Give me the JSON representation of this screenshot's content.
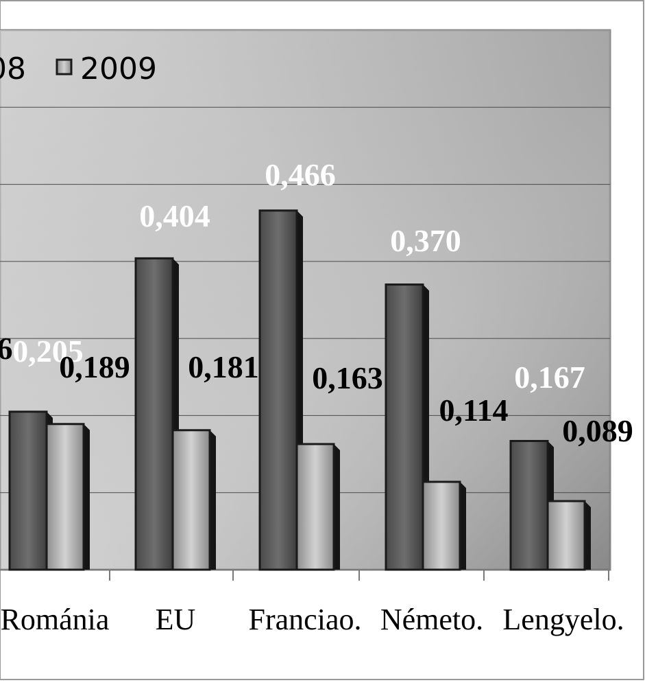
{
  "chart_data": {
    "type": "bar",
    "title": "",
    "xlabel": "",
    "ylabel": "",
    "ylim": [
      0,
      0.7
    ],
    "grid": true,
    "legend_position": "top-left",
    "categories": [
      "Románia",
      "EU",
      "Franciao.",
      "Németo.",
      "Lengyelo."
    ],
    "series": [
      {
        "name": "08",
        "color": "#5a5a5a",
        "label_color": "#ffffff",
        "values": [
          0.205,
          0.404,
          0.466,
          0.37,
          0.167
        ]
      },
      {
        "name": "2009",
        "color": "#a8a8a8",
        "label_color": "#000000",
        "values": [
          0.189,
          0.181,
          0.163,
          0.114,
          0.089
        ]
      }
    ],
    "value_labels": [
      [
        "0,205",
        "0,404",
        "0,466",
        "0,370",
        "0,167"
      ],
      [
        "0,189",
        "0,181",
        "0,163",
        "0,114",
        "0,089"
      ]
    ],
    "clipped_label_fragment": "6"
  }
}
